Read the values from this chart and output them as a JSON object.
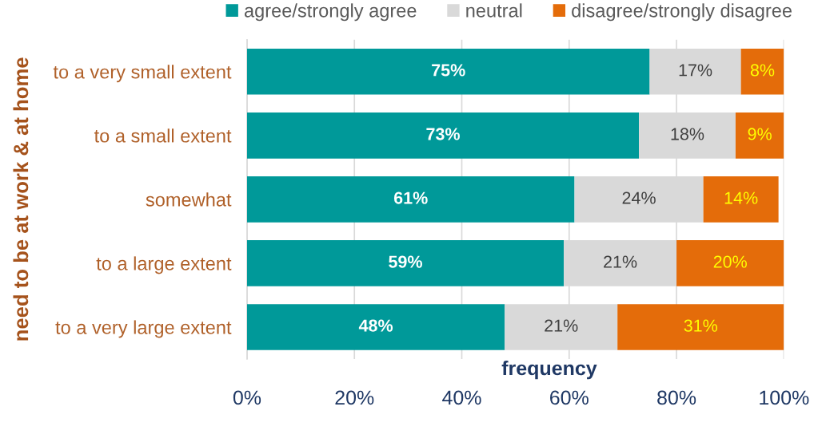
{
  "chart_data": {
    "type": "bar",
    "orientation": "horizontal",
    "stacked": true,
    "categories": [
      "to a very small extent",
      "to a small extent",
      "somewhat",
      "to a large extent",
      "to a very large extent"
    ],
    "series": [
      {
        "name": "agree/strongly agree",
        "color": "#009999",
        "values": [
          75,
          73,
          61,
          59,
          48
        ],
        "value_labels": [
          "75%",
          "73%",
          "61%",
          "59%",
          "48%"
        ]
      },
      {
        "name": "neutral",
        "color": "#d9d9d9",
        "values": [
          17,
          18,
          24,
          21,
          21
        ],
        "value_labels": [
          "17%",
          "18%",
          "24%",
          "21%",
          "21%"
        ]
      },
      {
        "name": "disagree/strongly disagree",
        "color": "#e46c0a",
        "values": [
          8,
          9,
          14,
          20,
          31
        ],
        "value_labels": [
          "8%",
          "9%",
          "14%",
          "20%",
          "31%"
        ]
      }
    ],
    "xlabel": "frequency",
    "ylabel": "need to be at work & at home",
    "xlim": [
      0,
      100
    ],
    "xticks": [
      {
        "value": 0,
        "label": "0%"
      },
      {
        "value": 20,
        "label": "20%"
      },
      {
        "value": 40,
        "label": "40%"
      },
      {
        "value": 60,
        "label": "60%"
      },
      {
        "value": 80,
        "label": "80%"
      },
      {
        "value": 100,
        "label": "100%"
      }
    ],
    "grid": "x",
    "legend": "top right"
  }
}
